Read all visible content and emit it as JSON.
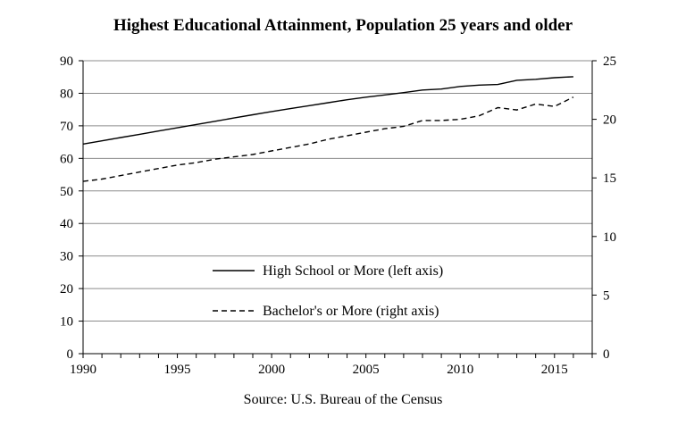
{
  "chart_data": {
    "type": "line",
    "title": "Highest Educational Attainment, Population 25 years and older",
    "source": "Source: U.S. Bureau of the Census",
    "x": [
      1990,
      1991,
      1992,
      1993,
      1994,
      1995,
      1996,
      1997,
      1998,
      1999,
      2000,
      2001,
      2002,
      2003,
      2004,
      2005,
      2006,
      2007,
      2008,
      2009,
      2010,
      2011,
      2012,
      2013,
      2014,
      2015,
      2016
    ],
    "xlim": [
      1990,
      2017
    ],
    "xticks": [
      "1990",
      "1995",
      "2000",
      "2005",
      "2010",
      "2015"
    ],
    "y_left": {
      "lim": [
        0,
        90
      ],
      "ticks": [
        "0",
        "10",
        "20",
        "30",
        "40",
        "50",
        "60",
        "70",
        "80",
        "90"
      ]
    },
    "y_right": {
      "lim": [
        0,
        25
      ],
      "ticks": [
        "0",
        "5",
        "10",
        "15",
        "20",
        "25"
      ]
    },
    "grid": "horizontal",
    "legend_position": "center",
    "series": [
      {
        "name": "High School or More (left axis)",
        "axis": "left",
        "style": "solid",
        "values": [
          64.4,
          65.4,
          66.4,
          67.4,
          68.4,
          69.4,
          70.4,
          71.4,
          72.4,
          73.4,
          74.4,
          75.3,
          76.2,
          77.1,
          78.0,
          78.8,
          79.5,
          80.2,
          81.0,
          81.3,
          82.1,
          82.5,
          82.7,
          84.0,
          84.3,
          84.8,
          85.1
        ]
      },
      {
        "name": "Bachelor's or More (right axis)",
        "axis": "right",
        "style": "dashed",
        "values": [
          14.7,
          14.9,
          15.2,
          15.5,
          15.8,
          16.1,
          16.3,
          16.6,
          16.8,
          17.0,
          17.3,
          17.6,
          17.9,
          18.3,
          18.6,
          18.9,
          19.2,
          19.4,
          19.9,
          19.9,
          20.0,
          20.3,
          21.0,
          20.8,
          21.3,
          21.1,
          21.9
        ]
      }
    ]
  },
  "colors": {
    "line": "#000000",
    "grid": "#8c8c8c",
    "background": "#ffffff"
  }
}
